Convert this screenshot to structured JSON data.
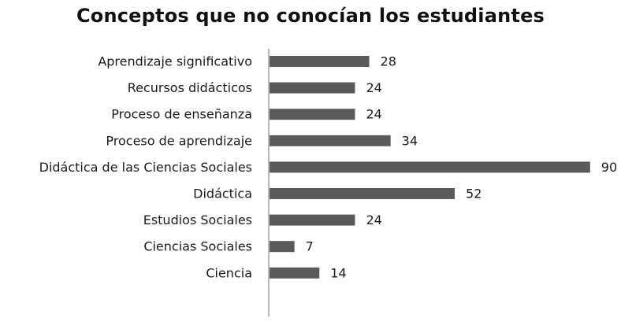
{
  "chart_data": {
    "type": "bar",
    "orientation": "horizontal",
    "title": "Conceptos que no conocían los estudiantes",
    "categories": [
      "Aprendizaje significativo",
      "Recursos didácticos",
      "Proceso de enseñanza",
      "Proceso de aprendizaje",
      "Didáctica de las Ciencias Sociales",
      "Didáctica",
      "Estudios Sociales",
      "Ciencias Sociales",
      "Ciencia"
    ],
    "values": [
      28,
      24,
      24,
      34,
      90,
      52,
      24,
      7,
      14
    ],
    "xlim": [
      0,
      90
    ],
    "grid": false,
    "legend": "none",
    "bar_color": "#5a5a5a"
  }
}
